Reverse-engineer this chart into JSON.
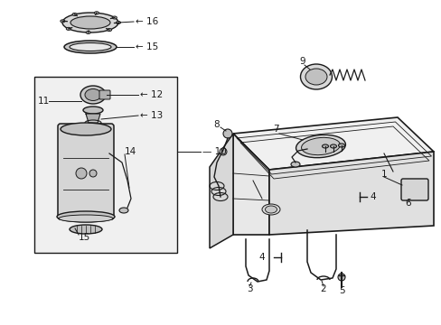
{
  "bg_color": "#ffffff",
  "lc": "#1a1a1a",
  "box_fill": "#f0f0f0",
  "tank_fill": "#ffffff",
  "label_fontsize": 7.5,
  "leader_lw": 0.7,
  "part_lw": 1.0
}
